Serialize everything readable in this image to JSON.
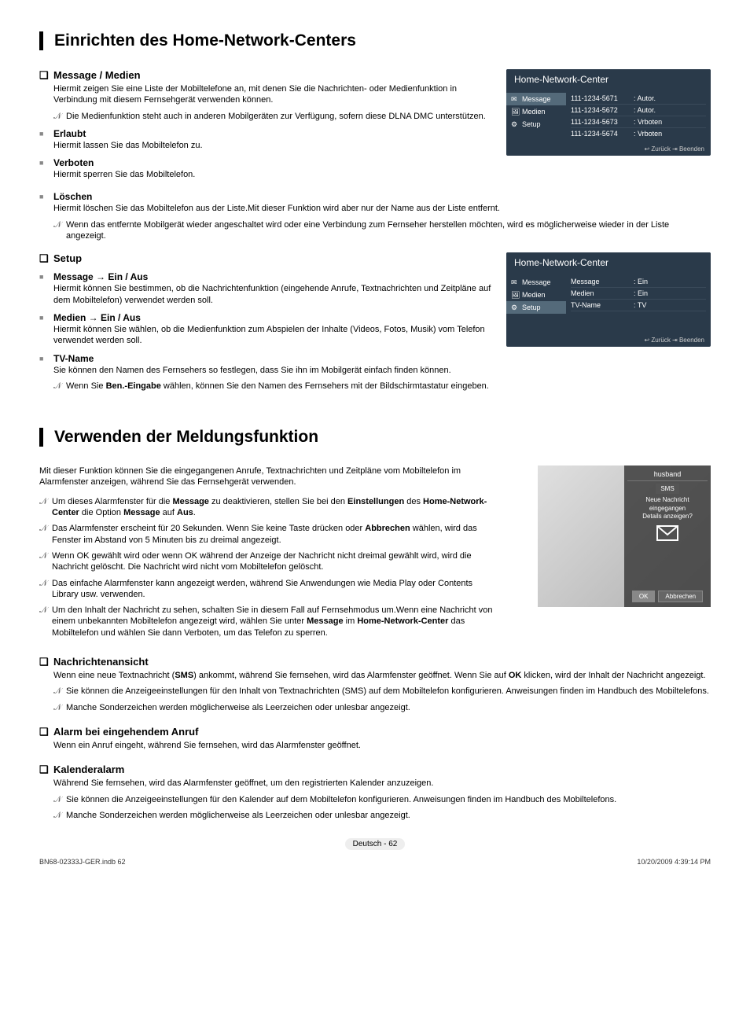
{
  "title1": "Einrichten des Home-Network-Centers",
  "title2": "Verwenden der Meldungsfunktion",
  "q_mark": "❑",
  "gray_sq": "■",
  "note_glyph": "𝒩",
  "msgMedien": {
    "head": "Message / Medien",
    "body": "Hiermit zeigen Sie eine Liste der Mobiltelefone an, mit denen Sie die Nachrichten- oder Medienfunktion in Verbindung mit diesem Fernsehgerät verwenden können.",
    "note": "Die Medienfunktion steht auch in anderen Mobilgeräten zur Verfügung, sofern diese DLNA DMC unterstützen."
  },
  "erlaubt": {
    "head": "Erlaubt",
    "body": "Hiermit lassen Sie das Mobiltelefon zu."
  },
  "verboten": {
    "head": "Verboten",
    "body": "Hiermit sperren Sie das Mobiltelefon."
  },
  "loeschen": {
    "head": "Löschen",
    "body": "Hiermit löschen Sie das Mobiltelefon aus der Liste.Mit dieser Funktion wird aber nur der Name aus der Liste entfernt.",
    "note": "Wenn das entfernte Mobilgerät wieder angeschaltet wird oder eine Verbindung zum Fernseher herstellen möchten, wird es möglicherweise wieder in der Liste angezeigt."
  },
  "setup": {
    "head": "Setup",
    "msg": {
      "head": "Message → Ein / Aus",
      "body": "Hiermit können Sie bestimmen, ob die Nachrichtenfunktion (eingehende Anrufe, Textnachrichten und Zeitpläne auf dem Mobiltelefon) verwendet werden soll."
    },
    "med": {
      "head": "Medien → Ein / Aus",
      "body": "Hiermit können Sie wählen, ob die Medienfunktion zum Abspielen der Inhalte (Videos, Fotos, Musik) vom Telefon verwendet werden soll."
    },
    "tvn": {
      "head": "TV-Name",
      "body": "Sie können den Namen des Fernsehers so festlegen, dass Sie ihn im Mobilgerät einfach finden können.",
      "note_before": "Wenn Sie ",
      "note_bold": "Ben.-Eingabe",
      "note_after": " wählen, können Sie den Namen des Fernsehers mit der Bildschirmtastatur eingeben."
    }
  },
  "panel1": {
    "title": "Home-Network-Center",
    "nav": [
      "Message",
      "Medien",
      "Setup"
    ],
    "rows": [
      {
        "a": "111-1234-5671",
        "b": ": Autor."
      },
      {
        "a": "111-1234-5672",
        "b": ": Autor."
      },
      {
        "a": "111-1234-5673",
        "b": ": Vrboten"
      },
      {
        "a": "111-1234-5674",
        "b": ": Vrboten"
      }
    ],
    "foot": "↩ Zurück    ⇥ Beenden"
  },
  "panel2": {
    "title": "Home-Network-Center",
    "nav": [
      "Message",
      "Medien",
      "Setup"
    ],
    "rows": [
      {
        "a": "Message",
        "b": ": Ein"
      },
      {
        "a": "Medien",
        "b": ": Ein"
      },
      {
        "a": "TV-Name",
        "b": ": TV"
      }
    ],
    "foot": "↩ Zurück    ⇥ Beenden"
  },
  "intro2": "Mit dieser Funktion können Sie die eingegangenen Anrufe, Textnachrichten und Zeitpläne vom Mobiltelefon im Alarmfenster anzeigen, während Sie das Fernsehgerät verwenden.",
  "notes2": [
    "Um dieses Alarmfenster für die <b>Message</b> zu deaktivieren, stellen Sie bei den <b>Einstellungen</b> des <b>Home-Network-Center</b> die Option <b>Message</b> auf <b>Aus</b>.",
    "Das Alarmfenster erscheint für 20 Sekunden. Wenn Sie keine Taste drücken oder <b>Abbrechen</b> wählen, wird das Fenster im Abstand von 5 Minuten bis zu dreimal angezeigt.",
    "Wenn OK gewählt wird oder wenn OK während der Anzeige der Nachricht nicht dreimal gewählt wird, wird die Nachricht gelöscht. Die Nachricht wird nicht vom Mobiltelefon gelöscht.",
    "Das einfache Alarmfenster kann angezeigt werden, während Sie Anwendungen wie Media Play oder Contents Library usw. verwenden.",
    "Um den Inhalt der Nachricht zu sehen, schalten Sie in diesem Fall auf Fernsehmodus um.Wenn eine Nachricht von einem unbekannten Mobiltelefon angezeigt wird, wählen Sie unter <b>Message</b> im <b>Home-Network-Center</b> das Mobiltelefon und wählen Sie dann Verboten, um das Telefon zu sperren."
  ],
  "alarm": {
    "name": "husband",
    "sms": "SMS",
    "line1": "Neue Nachricht",
    "line2": "eingegangen",
    "line3": "Details anzeigen?",
    "ok": "OK",
    "cancel": "Abbrechen"
  },
  "nachricht": {
    "head": "Nachrichtenansicht",
    "body": "Wenn eine neue Textnachricht (<b>SMS</b>) ankommt, während Sie fernsehen, wird das Alarmfenster geöffnet. Wenn Sie auf <b>OK</b> klicken, wird der Inhalt der Nachricht angezeigt.",
    "notes": [
      "Sie können die Anzeigeeinstellungen für den Inhalt von Textnachrichten (SMS) auf dem Mobiltelefon konfigurieren. Anweisungen finden im Handbuch des Mobiltelefons.",
      "Manche Sonderzeichen werden möglicherweise als Leerzeichen oder unlesbar angezeigt."
    ]
  },
  "alarmAnruf": {
    "head": "Alarm bei eingehendem Anruf",
    "body": "Wenn ein Anruf eingeht, während Sie fernsehen, wird das Alarmfenster geöffnet."
  },
  "kalender": {
    "head": "Kalenderalarm",
    "body": "Während Sie fernsehen, wird das Alarmfenster geöffnet, um den registrierten Kalender anzuzeigen.",
    "notes": [
      "Sie können die Anzeigeeinstellungen für den Kalender auf dem Mobiltelefon konfigurieren. Anweisungen finden im Handbuch des Mobiltelefons.",
      "Manche Sonderzeichen werden möglicherweise als Leerzeichen oder unlesbar angezeigt."
    ]
  },
  "pageNum": "Deutsch - 62",
  "footer": {
    "left": "BN68-02333J-GER.indb   62",
    "right": "10/20/2009   4:39:14 PM"
  }
}
